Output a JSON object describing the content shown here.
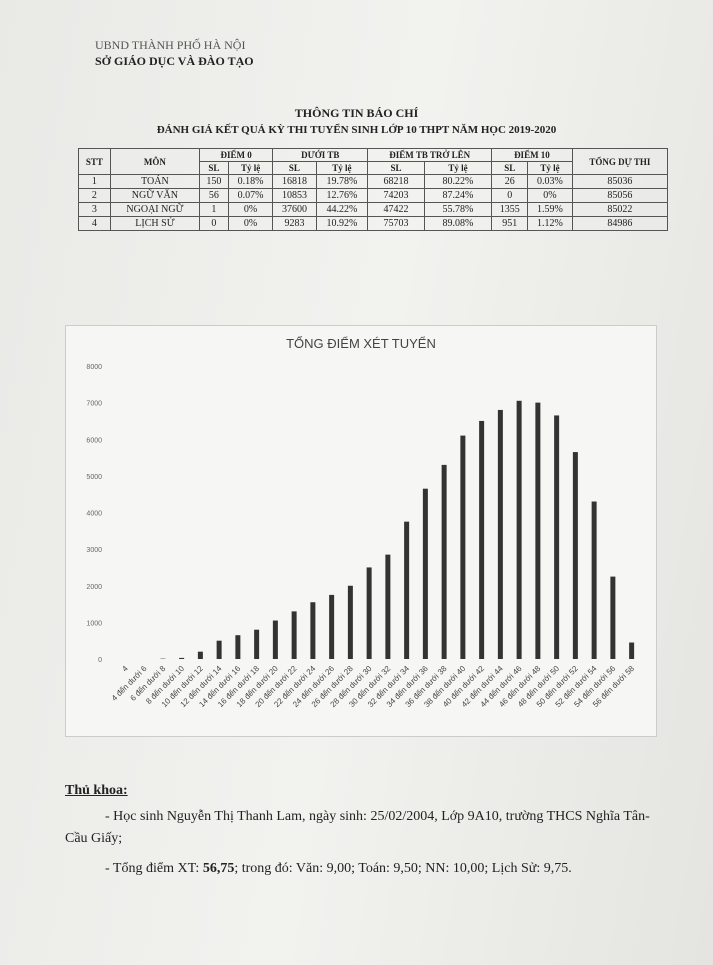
{
  "header": {
    "org": "UBND THÀNH PHỐ HÀ NỘI",
    "dept": "SỞ GIÁO DỤC VÀ ĐÀO TẠO"
  },
  "title": "THÔNG TIN BÁO CHÍ",
  "subtitle": "ĐÁNH GIÁ KẾT QUẢ KỲ THI TUYỂN SINH LỚP 10 THPT NĂM HỌC 2019-2020",
  "table": {
    "groups": [
      "STT",
      "MÔN",
      "ĐIỂM 0",
      "DƯỚI TB",
      "ĐIỂM TB TRỞ LÊN",
      "ĐIỂM 10",
      "TỔNG DỰ THI"
    ],
    "sub": [
      "SL",
      "Tỷ lệ"
    ],
    "rows": [
      [
        "1",
        "TOÁN",
        "150",
        "0.18%",
        "16818",
        "19.78%",
        "68218",
        "80.22%",
        "26",
        "0.03%",
        "85036"
      ],
      [
        "2",
        "NGỮ VĂN",
        "56",
        "0.07%",
        "10853",
        "12.76%",
        "74203",
        "87.24%",
        "0",
        "0%",
        "85056"
      ],
      [
        "3",
        "NGOẠI NGỮ",
        "1",
        "0%",
        "37600",
        "44.22%",
        "47422",
        "55.78%",
        "1355",
        "1.59%",
        "85022"
      ],
      [
        "4",
        "LỊCH SỬ",
        "0",
        "0%",
        "9283",
        "10.92%",
        "75703",
        "89.08%",
        "951",
        "1.12%",
        "84986"
      ]
    ]
  },
  "chart_data": {
    "type": "bar",
    "title": "TỔNG ĐIỂM XÉT TUYỂN",
    "categories": [
      "4",
      "4 đến dưới 6",
      "6 đến dưới 8",
      "8 đến dưới 10",
      "10 đến dưới 12",
      "12 đến dưới 14",
      "14 đến dưới 16",
      "16 đến dưới 18",
      "18 đến dưới 20",
      "20 đến dưới 22",
      "22 đến dưới 24",
      "24 đến dưới 26",
      "26 đến dưới 28",
      "28 đến dưới 30",
      "30 đến dưới 32",
      "32 đến dưới 34",
      "34 đến dưới 36",
      "36 đến dưới 38",
      "38 đến dưới 40",
      "40 đến dưới 42",
      "42 đến dưới 44",
      "44 đến dưới 46",
      "46 đến dưới 48",
      "48 đến dưới 50",
      "50 đến dưới 52",
      "52 đến dưới 54",
      "54 đến dưới 56",
      "56 đến dưới 58"
    ],
    "values": [
      0,
      0,
      10,
      30,
      200,
      500,
      650,
      800,
      1050,
      1300,
      1550,
      1750,
      2000,
      2500,
      2850,
      3750,
      4650,
      5300,
      6100,
      6500,
      6800,
      7050,
      7000,
      6650,
      5650,
      4300,
      2250,
      450
    ],
    "color": "#333333",
    "ylim": [
      0,
      8000
    ],
    "yticks": [
      0,
      1000,
      2000,
      3000,
      4000,
      5000,
      6000,
      7000,
      8000
    ]
  },
  "footer": {
    "heading": "Thủ khoa:",
    "line1": "- Học sinh Nguyễn Thị Thanh Lam, ngày sinh: 25/02/2004, Lớp 9A10, trường THCS Nghĩa Tân-Cầu Giấy;",
    "line2_a": "- Tổng điểm XT: ",
    "line2_b": "56,75",
    "line2_c": "; trong đó: Văn: 9,00; Toán: 9,50; NN: 10,00; Lịch Sử: 9,75."
  }
}
